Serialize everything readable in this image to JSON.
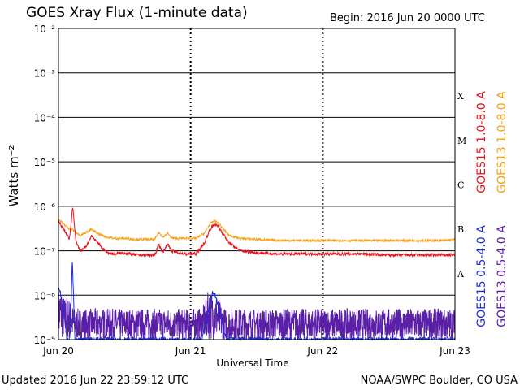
{
  "header": {
    "title": "GOES Xray Flux (1-minute data)",
    "begin": "Begin:  2016 Jun 20 0000 UTC"
  },
  "footer": {
    "updated": "Updated 2016 Jun 22 23:59:12 UTC",
    "credit": "NOAA/SWPC Boulder, CO USA"
  },
  "chart_data": {
    "type": "line",
    "title": "GOES Xray Flux (1-minute data)",
    "xlabel": "Universal Time",
    "ylabel": "Watts m⁻²",
    "x_range_hours": [
      0,
      72
    ],
    "x_ticks": [
      {
        "hour": 0,
        "label": "Jun 20"
      },
      {
        "hour": 24,
        "label": "Jun 21"
      },
      {
        "hour": 48,
        "label": "Jun 22"
      },
      {
        "hour": 72,
        "label": "Jun 23"
      }
    ],
    "y_scale": "log",
    "ylim": [
      1e-09,
      0.01
    ],
    "y_ticks": [
      {
        "exp": -2,
        "label": "10⁻²"
      },
      {
        "exp": -3,
        "label": "10⁻³"
      },
      {
        "exp": -4,
        "label": "10⁻⁴"
      },
      {
        "exp": -5,
        "label": "10⁻⁵"
      },
      {
        "exp": -6,
        "label": "10⁻⁶"
      },
      {
        "exp": -7,
        "label": "10⁻⁷"
      },
      {
        "exp": -8,
        "label": "10⁻⁸"
      },
      {
        "exp": -9,
        "label": "10⁻⁹"
      }
    ],
    "flare_classes": [
      {
        "label": "X",
        "exp": -3.5
      },
      {
        "label": "M",
        "exp": -4.5
      },
      {
        "label": "C",
        "exp": -5.5
      },
      {
        "label": "B",
        "exp": -6.5
      },
      {
        "label": "A",
        "exp": -7.5
      }
    ],
    "grid": "horizontal lines at each decade, dashed vertical at day boundaries",
    "legend_placement": "right, vertical",
    "series": [
      {
        "name": "GOES15 1.0-8.0 A",
        "color": "#e8131f",
        "hours": [
          0,
          1,
          2,
          2.6,
          3.2,
          4,
          5,
          6,
          7,
          8,
          9,
          10,
          12,
          14,
          16,
          17.5,
          18.2,
          19,
          19.8,
          20.4,
          21,
          23,
          25,
          26.5,
          27.5,
          28.3,
          29,
          29.8,
          31,
          33,
          36,
          40,
          45,
          50,
          55,
          60,
          65,
          70,
          72
        ],
        "values": [
          4.5e-07,
          3e-07,
          1.8e-07,
          1e-06,
          1.5e-07,
          1e-07,
          1.2e-07,
          2.2e-07,
          1.6e-07,
          1.1e-07,
          9e-08,
          8.5e-08,
          9e-08,
          8e-08,
          8e-08,
          8e-08,
          1.4e-07,
          9e-08,
          1.5e-07,
          1e-07,
          9.5e-08,
          8.5e-08,
          8.5e-08,
          1.5e-07,
          3e-07,
          4e-07,
          3.5e-07,
          2.5e-07,
          1.5e-07,
          1e-07,
          9e-08,
          8.5e-08,
          8.5e-08,
          8.5e-08,
          8.5e-08,
          8e-08,
          8e-08,
          8e-08,
          8e-08
        ]
      },
      {
        "name": "GOES13 1.0-8.0 A",
        "color": "#f5a21a",
        "hours": [
          0,
          1,
          2,
          2.6,
          3.2,
          4,
          5,
          6,
          7,
          8,
          9,
          10,
          12,
          14,
          16,
          17.5,
          18.2,
          19,
          19.8,
          20.4,
          21,
          23,
          25,
          26.5,
          27.5,
          28.3,
          29,
          29.8,
          31,
          33,
          36,
          40,
          45,
          50,
          55,
          60,
          65,
          70,
          72
        ],
        "values": [
          5e-07,
          4e-07,
          3e-07,
          3e-07,
          2.6e-07,
          2.2e-07,
          2.6e-07,
          3e-07,
          2.5e-07,
          2.2e-07,
          2e-07,
          1.9e-07,
          1.9e-07,
          1.8e-07,
          1.8e-07,
          1.8e-07,
          2.6e-07,
          2e-07,
          2.5e-07,
          2e-07,
          1.9e-07,
          1.9e-07,
          1.9e-07,
          2.5e-07,
          4e-07,
          4.7e-07,
          4.2e-07,
          3.2e-07,
          2.2e-07,
          1.9e-07,
          1.8e-07,
          1.7e-07,
          1.7e-07,
          1.7e-07,
          1.7e-07,
          1.7e-07,
          1.7e-07,
          1.7e-07,
          1.8e-07
        ]
      },
      {
        "name": "GOES15 0.5-4.0 A",
        "color": "#1a30e0",
        "hours": [
          0,
          0.5,
          1,
          1.5,
          2,
          2.2,
          2.5,
          2.8,
          3,
          3.5,
          4,
          20,
          26,
          27,
          27.6,
          28,
          28.4,
          29,
          29.6,
          30,
          30.5,
          40,
          55,
          65,
          72
        ],
        "values": [
          1.5e-08,
          1e-08,
          4e-09,
          1e-09,
          1e-09,
          2e-09,
          6.5e-08,
          5e-09,
          1e-09,
          1e-09,
          1e-09,
          1e-09,
          1e-09,
          3e-09,
          8e-09,
          1.2e-08,
          1e-08,
          6e-09,
          3e-09,
          1.5e-09,
          1e-09,
          1e-09,
          1e-09,
          1e-09,
          1e-09
        ]
      },
      {
        "name": "GOES13 0.5-4.0 A",
        "color": "#5a1fa6",
        "baseline_range": [
          1e-09,
          5e-09
        ],
        "peaks": [
          {
            "hour": 0.3,
            "value": 1.6e-08
          },
          {
            "hour": 1.5,
            "value": 1e-08
          },
          {
            "hour": 27.5,
            "value": 1.4e-08
          },
          {
            "hour": 28.5,
            "value": 1.2e-08
          }
        ]
      }
    ]
  }
}
